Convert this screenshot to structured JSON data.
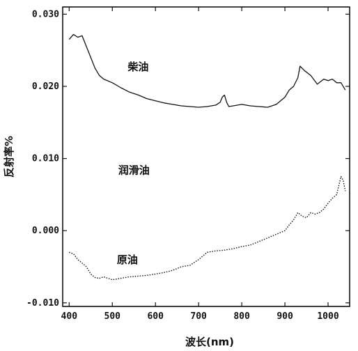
{
  "chart_data": {
    "type": "line",
    "xlabel": "波长(nm)",
    "ylabel": "反射率%",
    "xlim": [
      385,
      1050
    ],
    "ylim": [
      -0.0105,
      0.031
    ],
    "x_ticks": [
      400,
      500,
      600,
      700,
      800,
      900,
      1000
    ],
    "x_tick_labels": [
      "400",
      "500",
      "600",
      "700",
      "800",
      "900",
      "1000"
    ],
    "y_ticks": [
      -0.01,
      0.0,
      0.01,
      0.02,
      0.03
    ],
    "y_tick_labels": [
      "-0.010",
      "0.000",
      "0.010",
      "0.020",
      "0.030"
    ],
    "grid": false,
    "series": [
      {
        "name": "柴油",
        "style": "solid",
        "color": "#111111",
        "x": [
          400,
          410,
          420,
          430,
          440,
          450,
          460,
          470,
          480,
          500,
          520,
          540,
          560,
          580,
          600,
          620,
          640,
          660,
          680,
          700,
          720,
          740,
          750,
          755,
          760,
          765,
          770,
          780,
          800,
          820,
          840,
          860,
          880,
          900,
          910,
          920,
          930,
          935,
          945,
          960,
          975,
          990,
          1000,
          1010,
          1020,
          1030,
          1040
        ],
        "y": [
          0.0265,
          0.0272,
          0.0268,
          0.027,
          0.0255,
          0.024,
          0.0225,
          0.0215,
          0.021,
          0.0205,
          0.0198,
          0.0192,
          0.0188,
          0.0183,
          0.018,
          0.0177,
          0.0175,
          0.0173,
          0.0172,
          0.0171,
          0.0172,
          0.0174,
          0.0178,
          0.0185,
          0.0188,
          0.0178,
          0.0172,
          0.0173,
          0.0175,
          0.0173,
          0.0172,
          0.0171,
          0.0175,
          0.0185,
          0.0195,
          0.02,
          0.0212,
          0.0228,
          0.0222,
          0.0215,
          0.0203,
          0.021,
          0.0208,
          0.021,
          0.0205,
          0.0205,
          0.0195
        ]
      },
      {
        "name": "原油",
        "style": "dotted",
        "color": "#111111",
        "x": [
          400,
          410,
          420,
          430,
          440,
          450,
          460,
          470,
          480,
          500,
          520,
          540,
          560,
          580,
          600,
          620,
          640,
          660,
          680,
          700,
          720,
          740,
          760,
          780,
          800,
          820,
          840,
          860,
          880,
          900,
          910,
          920,
          930,
          940,
          950,
          960,
          970,
          980,
          990,
          1000,
          1010,
          1020,
          1030,
          1035,
          1040
        ],
        "y": [
          -0.003,
          -0.0032,
          -0.004,
          -0.0045,
          -0.005,
          -0.006,
          -0.0065,
          -0.0066,
          -0.0064,
          -0.0068,
          -0.0066,
          -0.0064,
          -0.0063,
          -0.0062,
          -0.006,
          -0.0058,
          -0.0055,
          -0.005,
          -0.0048,
          -0.004,
          -0.003,
          -0.0028,
          -0.0027,
          -0.0025,
          -0.0022,
          -0.002,
          -0.0015,
          -0.001,
          -0.0005,
          0.0,
          0.0008,
          0.0015,
          0.0025,
          0.002,
          0.0018,
          0.0025,
          0.0023,
          0.0025,
          0.003,
          0.0038,
          0.0045,
          0.005,
          0.0075,
          0.007,
          0.0055
        ]
      }
    ],
    "labels": [
      {
        "text": "柴油",
        "x": 560,
        "y": 0.0222
      },
      {
        "text": "润滑油",
        "x": 550,
        "y": 0.0079
      },
      {
        "text": "原油",
        "x": 535,
        "y": -0.0045
      }
    ]
  }
}
